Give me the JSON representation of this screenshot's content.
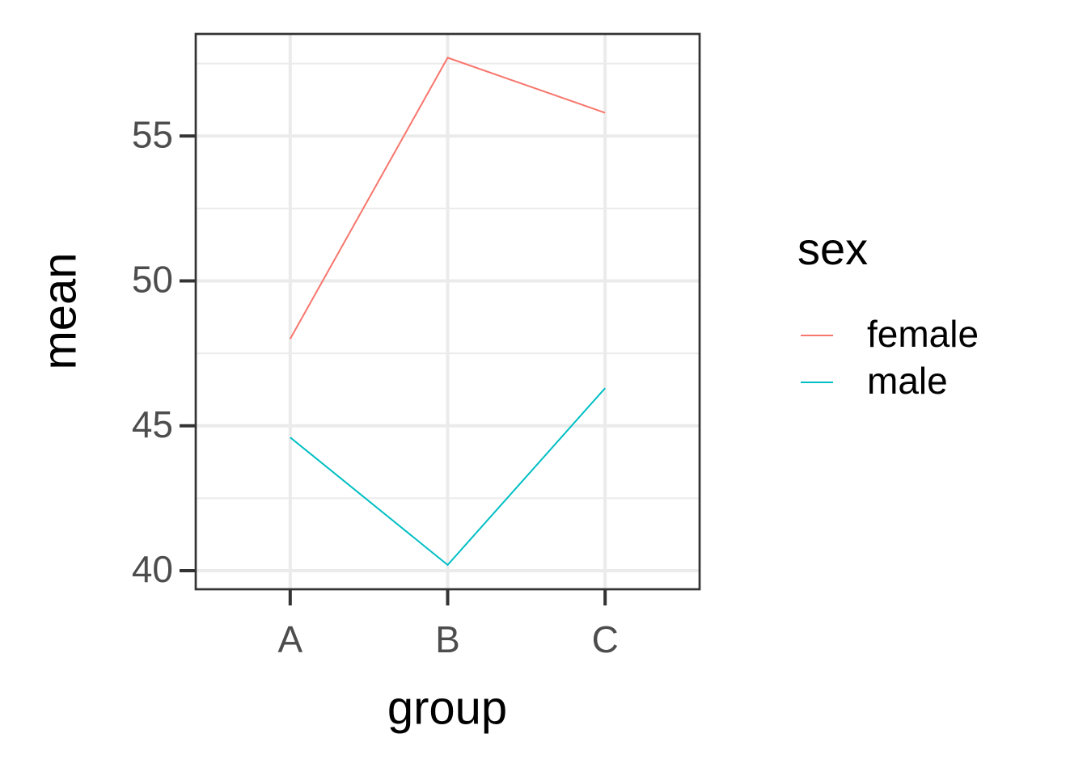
{
  "chart_data": {
    "type": "line",
    "x_label": "group",
    "y_label": "mean",
    "categories": [
      "A",
      "B",
      "C"
    ],
    "series": [
      {
        "name": "female",
        "color": "#f8766d",
        "values": [
          48.0,
          57.7,
          55.8
        ]
      },
      {
        "name": "male",
        "color": "#00bfc4",
        "values": [
          44.6,
          40.2,
          46.3
        ]
      }
    ],
    "ylim": [
      39.36,
      58.52
    ],
    "yticks": [
      40,
      45,
      50,
      55
    ],
    "yminorticks": [
      42.5,
      47.5,
      52.5,
      57.5
    ],
    "grid": true,
    "legend_title": "sex",
    "legend": "right"
  }
}
